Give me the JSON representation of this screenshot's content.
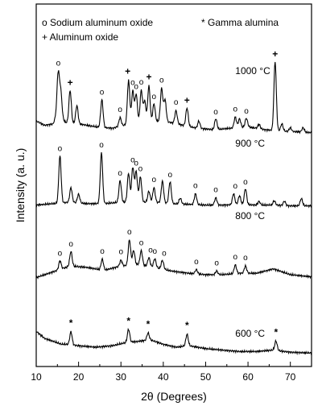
{
  "chart_data": {
    "type": "line",
    "xlabel": "2θ (Degrees)",
    "ylabel": "Intensity (a. u.)",
    "xlim": [
      10,
      75
    ],
    "xticks": [
      10,
      20,
      30,
      40,
      50,
      60,
      70
    ],
    "legend": [
      {
        "symbol": "o",
        "label": "Sodium aluminum oxide"
      },
      {
        "symbol": "*",
        "label": "Gamma alumina"
      },
      {
        "symbol": "+",
        "label": "Aluminum oxide"
      }
    ],
    "series": [
      {
        "name": "1000 °C",
        "offset": 3.0,
        "baseline": [
          [
            10,
            0.22
          ],
          [
            12,
            0.16
          ],
          [
            14,
            0.18
          ],
          [
            15,
            0.35
          ],
          [
            16,
            0.25
          ],
          [
            17,
            0.2
          ],
          [
            20,
            0.18
          ],
          [
            24,
            0.14
          ],
          [
            28,
            0.12
          ],
          [
            32,
            0.18
          ],
          [
            36,
            0.2
          ],
          [
            40,
            0.22
          ],
          [
            44,
            0.17
          ],
          [
            48,
            0.12
          ],
          [
            52,
            0.1
          ],
          [
            56,
            0.12
          ],
          [
            60,
            0.14
          ],
          [
            64,
            0.1
          ],
          [
            68,
            0.08
          ],
          [
            72,
            0.07
          ],
          [
            75,
            0.06
          ]
        ],
        "peaks": [
          [
            15.2,
            0.55
          ],
          [
            15.8,
            0.35
          ],
          [
            18.0,
            0.45
          ],
          [
            19.6,
            0.25
          ],
          [
            25.5,
            0.38
          ],
          [
            29.8,
            0.12
          ],
          [
            31.8,
            0.6
          ],
          [
            32.8,
            0.45
          ],
          [
            33.6,
            0.4
          ],
          [
            34.8,
            0.45
          ],
          [
            35.6,
            0.3
          ],
          [
            36.6,
            0.5
          ],
          [
            37.8,
            0.25
          ],
          [
            39.6,
            0.45
          ],
          [
            40.4,
            0.3
          ],
          [
            43.0,
            0.18
          ],
          [
            45.6,
            0.25
          ],
          [
            48.4,
            0.1
          ],
          [
            52.4,
            0.15
          ],
          [
            57.0,
            0.15
          ],
          [
            58.0,
            0.12
          ],
          [
            59.6,
            0.12
          ],
          [
            62.6,
            0.06
          ],
          [
            66.4,
            0.95
          ],
          [
            68.0,
            0.1
          ],
          [
            70.0,
            0.05
          ],
          [
            73.0,
            0.06
          ]
        ],
        "markers": [
          {
            "x": 15.2,
            "sym": "o"
          },
          {
            "x": 18.0,
            "sym": "+"
          },
          {
            "x": 25.5,
            "sym": "o"
          },
          {
            "x": 29.8,
            "sym": "o"
          },
          {
            "x": 31.6,
            "sym": "+"
          },
          {
            "x": 32.8,
            "sym": "o"
          },
          {
            "x": 33.6,
            "sym": "o"
          },
          {
            "x": 34.8,
            "sym": "o"
          },
          {
            "x": 36.6,
            "sym": "+"
          },
          {
            "x": 37.8,
            "sym": "o"
          },
          {
            "x": 39.6,
            "sym": "o"
          },
          {
            "x": 43.0,
            "sym": "o"
          },
          {
            "x": 45.6,
            "sym": "+"
          },
          {
            "x": 52.4,
            "sym": "o"
          },
          {
            "x": 57.0,
            "sym": "o"
          },
          {
            "x": 59.6,
            "sym": "o"
          },
          {
            "x": 66.4,
            "sym": "+"
          }
        ]
      },
      {
        "name": "900 °C",
        "offset": 2.0,
        "baseline": [
          [
            10,
            0.06
          ],
          [
            14,
            0.08
          ],
          [
            18,
            0.1
          ],
          [
            22,
            0.08
          ],
          [
            26,
            0.08
          ],
          [
            30,
            0.1
          ],
          [
            34,
            0.1
          ],
          [
            38,
            0.1
          ],
          [
            42,
            0.08
          ],
          [
            46,
            0.07
          ],
          [
            50,
            0.06
          ],
          [
            54,
            0.06
          ],
          [
            58,
            0.07
          ],
          [
            62,
            0.06
          ],
          [
            66,
            0.06
          ],
          [
            70,
            0.05
          ],
          [
            75,
            0.05
          ]
        ],
        "peaks": [
          [
            15.6,
            0.65
          ],
          [
            18.2,
            0.2
          ],
          [
            20.0,
            0.12
          ],
          [
            25.4,
            0.7
          ],
          [
            29.8,
            0.3
          ],
          [
            31.8,
            0.4
          ],
          [
            32.8,
            0.48
          ],
          [
            33.6,
            0.42
          ],
          [
            34.6,
            0.35
          ],
          [
            36.6,
            0.15
          ],
          [
            37.8,
            0.2
          ],
          [
            39.8,
            0.3
          ],
          [
            41.6,
            0.3
          ],
          [
            44.0,
            0.08
          ],
          [
            47.6,
            0.15
          ],
          [
            52.4,
            0.1
          ],
          [
            56.6,
            0.15
          ],
          [
            58.0,
            0.12
          ],
          [
            59.4,
            0.22
          ],
          [
            62.6,
            0.05
          ],
          [
            66.2,
            0.06
          ],
          [
            68.6,
            0.06
          ],
          [
            72.6,
            0.1
          ]
        ],
        "markers": [
          {
            "x": 15.6,
            "sym": "o"
          },
          {
            "x": 25.4,
            "sym": "o"
          },
          {
            "x": 29.8,
            "sym": "o"
          },
          {
            "x": 32.8,
            "sym": "o"
          },
          {
            "x": 33.6,
            "sym": "o"
          },
          {
            "x": 34.6,
            "sym": "o"
          },
          {
            "x": 37.8,
            "sym": "o"
          },
          {
            "x": 41.6,
            "sym": "o"
          },
          {
            "x": 47.6,
            "sym": "o"
          },
          {
            "x": 52.4,
            "sym": "o"
          },
          {
            "x": 57.0,
            "sym": "o"
          },
          {
            "x": 59.4,
            "sym": "o"
          }
        ]
      },
      {
        "name": "800 °C",
        "offset": 1.0,
        "baseline": [
          [
            10,
            0.06
          ],
          [
            12,
            0.1
          ],
          [
            14,
            0.14
          ],
          [
            16,
            0.18
          ],
          [
            18,
            0.22
          ],
          [
            22,
            0.2
          ],
          [
            26,
            0.16
          ],
          [
            30,
            0.22
          ],
          [
            34,
            0.24
          ],
          [
            38,
            0.2
          ],
          [
            42,
            0.15
          ],
          [
            46,
            0.12
          ],
          [
            50,
            0.1
          ],
          [
            54,
            0.1
          ],
          [
            58,
            0.12
          ],
          [
            62,
            0.12
          ],
          [
            66,
            0.18
          ],
          [
            70,
            0.1
          ],
          [
            75,
            0.07
          ]
        ],
        "peaks": [
          [
            15.6,
            0.12
          ],
          [
            18.2,
            0.2
          ],
          [
            25.6,
            0.15
          ],
          [
            30.0,
            0.08
          ],
          [
            32.0,
            0.35
          ],
          [
            33.0,
            0.2
          ],
          [
            34.8,
            0.2
          ],
          [
            36.6,
            0.12
          ],
          [
            38.0,
            0.12
          ],
          [
            39.8,
            0.12
          ],
          [
            47.8,
            0.06
          ],
          [
            52.6,
            0.05
          ],
          [
            57.0,
            0.12
          ],
          [
            59.4,
            0.1
          ]
        ],
        "markers": [
          {
            "x": 15.6,
            "sym": "o"
          },
          {
            "x": 18.2,
            "sym": "o"
          },
          {
            "x": 25.6,
            "sym": "o"
          },
          {
            "x": 30.0,
            "sym": "o"
          },
          {
            "x": 32.0,
            "sym": "o"
          },
          {
            "x": 34.8,
            "sym": "o"
          },
          {
            "x": 37.0,
            "sym": "o"
          },
          {
            "x": 38.0,
            "sym": "o"
          },
          {
            "x": 40.2,
            "sym": "o"
          },
          {
            "x": 47.8,
            "sym": "o"
          },
          {
            "x": 52.6,
            "sym": "o"
          },
          {
            "x": 57.0,
            "sym": "o"
          },
          {
            "x": 59.4,
            "sym": "o"
          }
        ]
      },
      {
        "name": "600 °C",
        "offset": 0.0,
        "baseline": [
          [
            10,
            0.32
          ],
          [
            12,
            0.22
          ],
          [
            14,
            0.18
          ],
          [
            16,
            0.14
          ],
          [
            17,
            0.14
          ],
          [
            20,
            0.12
          ],
          [
            24,
            0.1
          ],
          [
            28,
            0.12
          ],
          [
            31,
            0.16
          ],
          [
            34,
            0.18
          ],
          [
            37,
            0.2
          ],
          [
            40,
            0.14
          ],
          [
            43,
            0.1
          ],
          [
            46,
            0.12
          ],
          [
            50,
            0.08
          ],
          [
            54,
            0.06
          ],
          [
            58,
            0.04
          ],
          [
            62,
            0.04
          ],
          [
            66,
            0.06
          ],
          [
            70,
            0.03
          ],
          [
            75,
            0.02
          ]
        ],
        "peaks": [
          [
            18.2,
            0.18
          ],
          [
            31.8,
            0.18
          ],
          [
            36.4,
            0.1
          ],
          [
            45.6,
            0.16
          ],
          [
            66.6,
            0.13
          ]
        ],
        "markers": [
          {
            "x": 18.2,
            "sym": "*"
          },
          {
            "x": 31.8,
            "sym": "*"
          },
          {
            "x": 36.4,
            "sym": "*"
          },
          {
            "x": 45.6,
            "sym": "*"
          },
          {
            "x": 66.6,
            "sym": "*"
          }
        ]
      }
    ]
  }
}
